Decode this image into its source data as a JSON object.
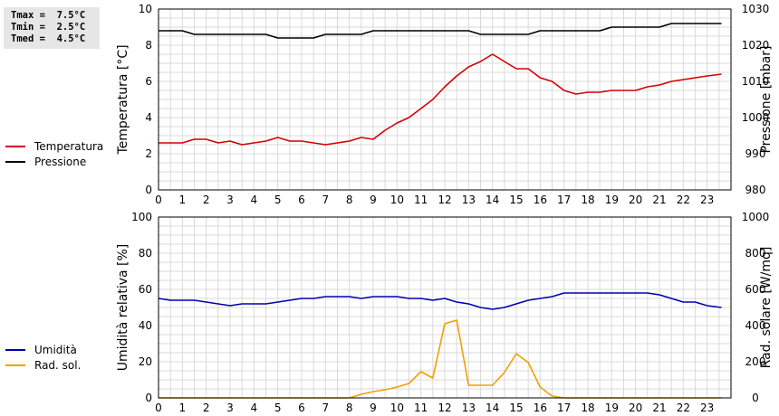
{
  "stats": {
    "tmax": "Tmax =  7.5°C",
    "tmin": "Tmin =  2.5°C",
    "tmed": "Tmed =  4.5°C"
  },
  "chart_data": [
    {
      "type": "line",
      "x_ticks": [
        "0",
        "1",
        "2",
        "3",
        "4",
        "5",
        "6",
        "7",
        "8",
        "9",
        "10",
        "11",
        "12",
        "13",
        "14",
        "15",
        "16",
        "17",
        "18",
        "19",
        "20",
        "21",
        "22",
        "23"
      ],
      "xlim": [
        0,
        24
      ],
      "ylabel_left": "Temperatura [°C]",
      "ylabel_right": "Pressione [mbar]",
      "ylim_left": [
        0,
        10
      ],
      "ylim_right": [
        980,
        1030
      ],
      "yticks_left": [
        "0",
        "2",
        "4",
        "6",
        "8",
        "10"
      ],
      "yticks_right": [
        "980",
        "990",
        "1000",
        "1010",
        "1020",
        "1030"
      ],
      "grid": true,
      "legend_position": "left",
      "series": [
        {
          "name": "Temperatura",
          "axis": "left",
          "color": "#d40000",
          "x": [
            0,
            1,
            1.5,
            2,
            2.5,
            3,
            3.5,
            4,
            4.5,
            5,
            5.5,
            6,
            6.5,
            7,
            7.5,
            8,
            8.5,
            9,
            9.5,
            10,
            10.5,
            11,
            11.5,
            12,
            12.5,
            13,
            13.5,
            14,
            14.5,
            15,
            15.5,
            16,
            16.5,
            17,
            17.5,
            18,
            18.5,
            19,
            19.5,
            20,
            20.5,
            21,
            21.5,
            22,
            22.5,
            23,
            23.6
          ],
          "values": [
            2.6,
            2.6,
            2.8,
            2.8,
            2.6,
            2.7,
            2.5,
            2.6,
            2.7,
            2.9,
            2.7,
            2.7,
            2.6,
            2.5,
            2.6,
            2.7,
            2.9,
            2.8,
            3.3,
            3.7,
            4.0,
            4.5,
            5.0,
            5.7,
            6.3,
            6.8,
            7.1,
            7.5,
            7.1,
            6.7,
            6.7,
            6.2,
            6.0,
            5.5,
            5.3,
            5.4,
            5.4,
            5.5,
            5.5,
            5.5,
            5.7,
            5.8,
            6.0,
            6.1,
            6.2,
            6.3,
            6.4
          ]
        },
        {
          "name": "Pressione",
          "axis": "right",
          "color": "#000000",
          "x": [
            0,
            1,
            1.5,
            2,
            4,
            4.5,
            5,
            6,
            6.5,
            7,
            8,
            8.5,
            9,
            13,
            13.5,
            15,
            15.5,
            16,
            17,
            18,
            18.5,
            19,
            20,
            21,
            21.5,
            22,
            23,
            23.6
          ],
          "values": [
            1024,
            1024,
            1023,
            1023,
            1023,
            1023,
            1022,
            1022,
            1022,
            1023,
            1023,
            1023,
            1024,
            1024,
            1023,
            1023,
            1023,
            1024,
            1024,
            1024,
            1024,
            1025,
            1025,
            1025,
            1026,
            1026,
            1026,
            1026
          ]
        }
      ]
    },
    {
      "type": "line",
      "x_ticks": [
        "0",
        "1",
        "2",
        "3",
        "4",
        "5",
        "6",
        "7",
        "8",
        "9",
        "10",
        "11",
        "12",
        "13",
        "14",
        "15",
        "16",
        "17",
        "18",
        "19",
        "20",
        "21",
        "22",
        "23"
      ],
      "xlim": [
        0,
        24
      ],
      "ylabel_left": "Umidità relativa [%]",
      "ylabel_right": "Rad. solare [W/mq]",
      "ylim_left": [
        0,
        100
      ],
      "ylim_right": [
        0,
        1000
      ],
      "yticks_left": [
        "0",
        "20",
        "40",
        "60",
        "80",
        "100"
      ],
      "yticks_right": [
        "0",
        "200",
        "400",
        "600",
        "800",
        "1000"
      ],
      "grid": true,
      "legend_position": "left",
      "series": [
        {
          "name": "Umidità",
          "axis": "left",
          "color": "#0000b4",
          "x": [
            0,
            0.5,
            1.5,
            2,
            2.5,
            3,
            3.5,
            4.5,
            5,
            5.5,
            6,
            6.5,
            7,
            8,
            8.5,
            9,
            10,
            10.5,
            11,
            11.5,
            12,
            12.5,
            13,
            13.5,
            14,
            14.5,
            15,
            15.5,
            16,
            16.5,
            17,
            20,
            20.5,
            21,
            21.5,
            22,
            22.5,
            23,
            23.6
          ],
          "values": [
            55,
            54,
            54,
            53,
            52,
            51,
            52,
            52,
            53,
            54,
            55,
            55,
            56,
            56,
            55,
            56,
            56,
            55,
            55,
            54,
            55,
            53,
            52,
            50,
            49,
            50,
            52,
            54,
            55,
            56,
            58,
            58,
            58,
            57,
            55,
            53,
            53,
            51,
            50
          ]
        },
        {
          "name": "Rad. sol.",
          "axis": "right",
          "color": "#f0a000",
          "x": [
            0,
            8,
            8.5,
            9,
            9.5,
            10,
            10.5,
            11,
            11.5,
            12,
            12.5,
            13,
            13.5,
            14,
            14.5,
            15,
            15.5,
            16,
            16.5,
            17,
            23.6
          ],
          "values": [
            0,
            0,
            20,
            35,
            45,
            60,
            80,
            145,
            110,
            410,
            430,
            70,
            70,
            70,
            140,
            245,
            195,
            60,
            10,
            0,
            0
          ]
        }
      ]
    }
  ]
}
